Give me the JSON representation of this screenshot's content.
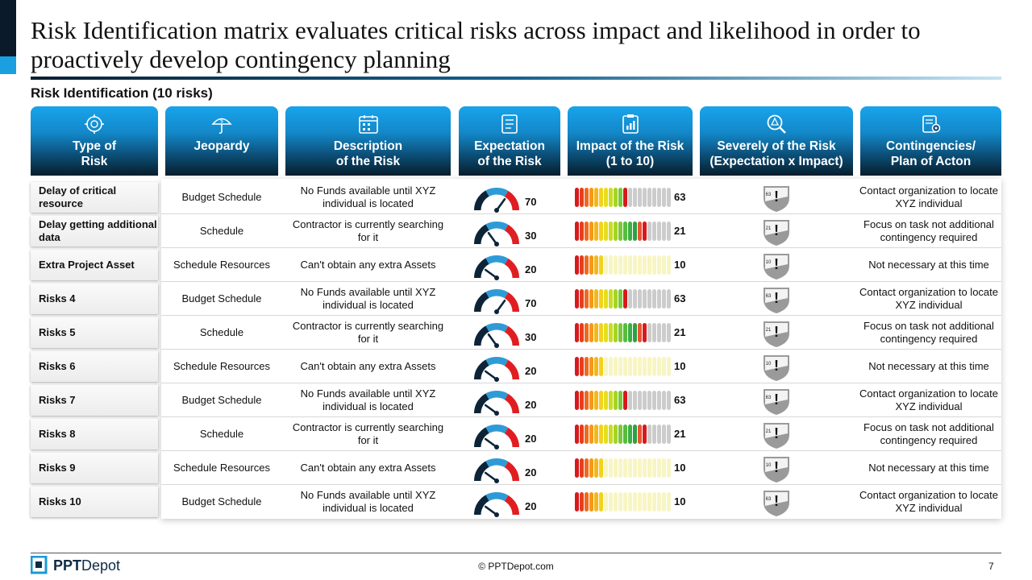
{
  "title": "Risk Identification matrix evaluates critical risks across impact and likelihood in order to proactively develop contingency planning",
  "subtitle": "Risk Identification (10 risks)",
  "headers": [
    {
      "label": "Type of\nRisk",
      "icon": "risk-type-icon"
    },
    {
      "label": "Jeopardy",
      "icon": "umbrella-dollar-icon"
    },
    {
      "label": "Description\nof the Risk",
      "icon": "calendar-icon"
    },
    {
      "label": "Expectation\nof the Risk",
      "icon": "checklist-icon"
    },
    {
      "label": "Impact of the Risk\n(1 to 10)",
      "icon": "clipboard-chart-icon"
    },
    {
      "label": "Severely of the Risk\n(Expectation x Impact)",
      "icon": "magnifier-warning-icon"
    },
    {
      "label": "Contingencies/\nPlan of Acton",
      "icon": "plan-gear-icon"
    }
  ],
  "rows": [
    {
      "type": "Delay of critical resource",
      "jeopardy": "Budget Schedule",
      "description": "No Funds available until XYZ individual is located",
      "expectation": 70,
      "impact_bars": 11,
      "impact": "63",
      "severity": "63",
      "contingency": "Contact organization to locate XYZ individual"
    },
    {
      "type": "Delay getting additional data",
      "jeopardy": "Schedule",
      "description": "Contractor is currently searching for it",
      "expectation": 30,
      "impact_bars": 15,
      "impact": "21",
      "severity": "21",
      "contingency": "Focus on task not additional contingency required"
    },
    {
      "type": "Extra Project Asset",
      "jeopardy": "Schedule Resources",
      "description": "Can't obtain any extra Assets",
      "expectation": 20,
      "impact_bars": 6,
      "impact": "10",
      "severity": "10",
      "contingency": "Not necessary at this time"
    },
    {
      "type": "Risks 4",
      "jeopardy": "Budget Schedule",
      "description": "No Funds available until XYZ individual is located",
      "expectation": 70,
      "impact_bars": 11,
      "impact": "63",
      "severity": "63",
      "contingency": "Contact organization to locate XYZ individual"
    },
    {
      "type": "Risks 5",
      "jeopardy": "Schedule",
      "description": "Contractor is currently searching for it",
      "expectation": 30,
      "impact_bars": 15,
      "impact": "21",
      "severity": "21",
      "contingency": "Focus on task not additional contingency required"
    },
    {
      "type": "Risks 6",
      "jeopardy": "Schedule Resources",
      "description": "Can't obtain any extra Assets",
      "expectation": 20,
      "impact_bars": 6,
      "impact": "10",
      "severity": "10",
      "contingency": "Not necessary at this time"
    },
    {
      "type": "Risks 7",
      "jeopardy": "Budget Schedule",
      "description": "No Funds available until XYZ individual is located",
      "expectation": 20,
      "impact_bars": 11,
      "impact": "63",
      "severity": "63",
      "contingency": "Contact organization to locate XYZ individual"
    },
    {
      "type": "Risks 8",
      "jeopardy": "Schedule",
      "description": "Contractor is currently searching for it",
      "expectation": 20,
      "impact_bars": 15,
      "impact": "21",
      "severity": "21",
      "contingency": "Focus on task not additional contingency required"
    },
    {
      "type": "Risks 9",
      "jeopardy": "Schedule Resources",
      "description": "Can't obtain any extra Assets",
      "expectation": 20,
      "impact_bars": 6,
      "impact": "10",
      "severity": "10",
      "contingency": "Not necessary at this time"
    },
    {
      "type": "Risks 10",
      "jeopardy": "Budget Schedule",
      "description": "No Funds available until XYZ individual is located",
      "expectation": 20,
      "impact_bars": 6,
      "impact": "10",
      "severity": "63",
      "contingency": "Contact organization to locate XYZ individual"
    }
  ],
  "impact_scale_total": 20,
  "colors": {
    "accent_dark": "#0a1a2a",
    "accent_blue": "#1aa0e0",
    "gauge_dark": "#0d2438",
    "gauge_blue": "#2f9bd6",
    "gauge_red": "#e01e22",
    "bar_empty": "#f7f5c4",
    "bar_grey": "#cccccc",
    "bar_palette": [
      "#d7191c",
      "#e63d1f",
      "#ef6a1d",
      "#f39a1b",
      "#f4b81c",
      "#f3d21d",
      "#e6de1d",
      "#c8dc22",
      "#a4d329",
      "#7ac838",
      "#56bd3f",
      "#3cb043",
      "#2fa045",
      "#ea5434",
      "#d7191c"
    ]
  },
  "footer": {
    "logo_bold": "PPT",
    "logo_rest": "Depot",
    "copyright": "© PPTDepot.com",
    "page": "7"
  }
}
